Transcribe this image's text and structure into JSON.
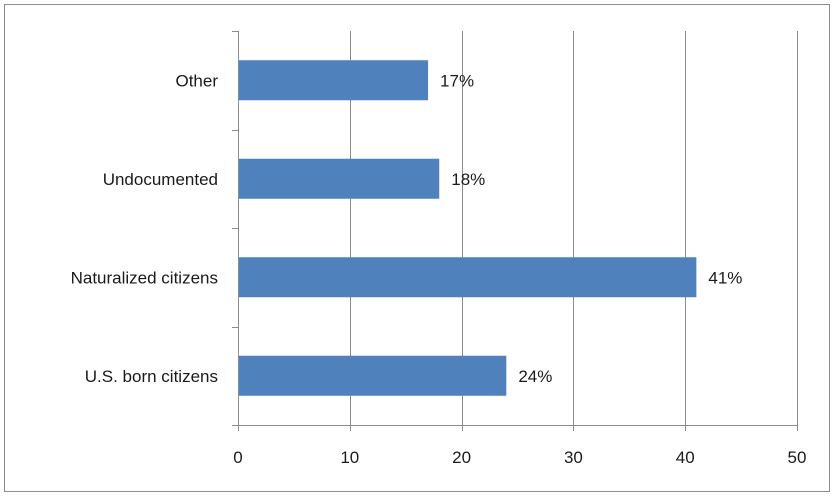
{
  "chart_data": {
    "type": "bar",
    "orientation": "horizontal",
    "categories": [
      "U.S. born citizens",
      "Naturalized citizens",
      "Undocumented",
      "Other"
    ],
    "values": [
      24,
      41,
      18,
      17
    ],
    "data_labels": [
      "24%",
      "41%",
      "18%",
      "17%"
    ],
    "xlim": [
      0,
      50
    ],
    "xticks": [
      0,
      10,
      20,
      30,
      40,
      50
    ],
    "grid": "vertical",
    "legend": "none",
    "bar_color": "#4f81bd",
    "grid_color": "#8c8c8c",
    "axis_color": "#8c8c8c"
  }
}
